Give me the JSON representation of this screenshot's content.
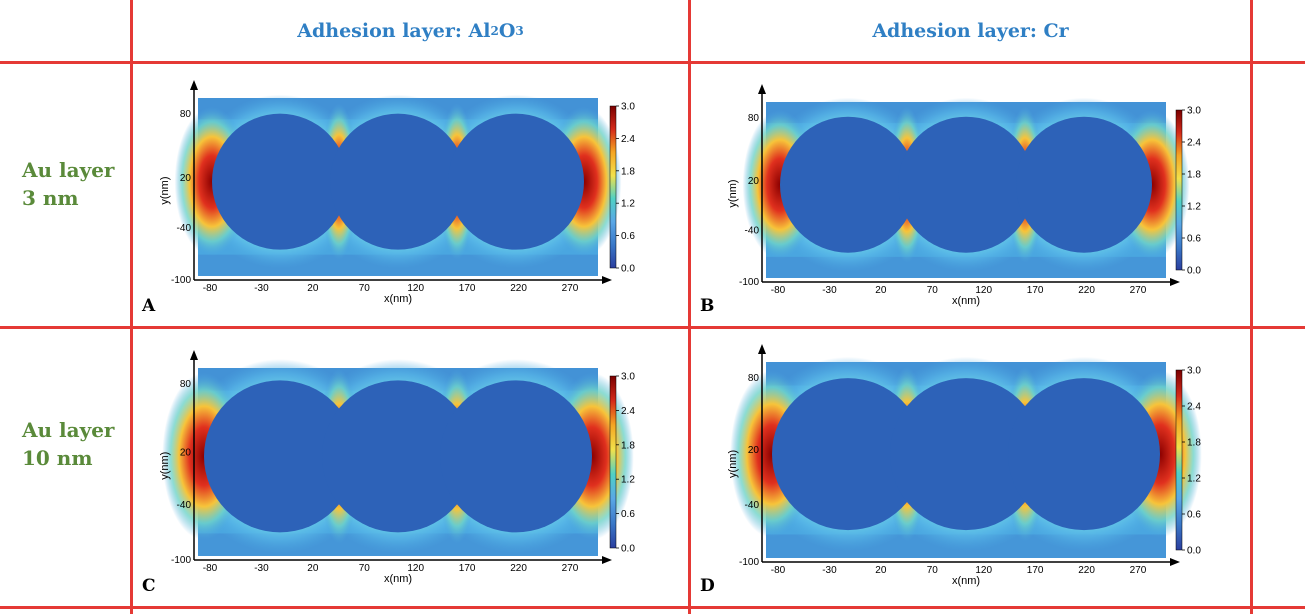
{
  "headers": {
    "col1_prefix": "Adhesion layer: Al",
    "col1_sub1": "2",
    "col1_mid": "O",
    "col1_sub2": "3",
    "col2": "Adhesion layer: Cr"
  },
  "rows": [
    {
      "line1": "Au layer",
      "line2": "3 nm"
    },
    {
      "line1": "Au layer",
      "line2": "10 nm"
    }
  ],
  "panels": [
    {
      "label": "A"
    },
    {
      "label": "B"
    },
    {
      "label": "C"
    },
    {
      "label": "D"
    }
  ],
  "axes": {
    "xlabel": "x(nm)",
    "ylabel": "y(nm)",
    "xticks": [
      "-80",
      "-30",
      "20",
      "70",
      "120",
      "170",
      "220",
      "270"
    ],
    "yticks": [
      "80",
      "20",
      "-40",
      "-100"
    ]
  },
  "colorbar": {
    "ticks": [
      "3.0",
      "2.4",
      "1.8",
      "1.2",
      "0.6",
      "0.0"
    ],
    "colors": [
      "#7a0000",
      "#d42a1a",
      "#f5a623",
      "#f2e14a",
      "#4fd1c5",
      "#5aa7e6",
      "#3a78c8",
      "#2b3e9e"
    ]
  },
  "colors": {
    "grid": "#e53935",
    "header": "#2f7fc4",
    "row_label": "#5a8a3a",
    "background_field": "#4aa6e0",
    "particle": "#2d62b8"
  }
}
